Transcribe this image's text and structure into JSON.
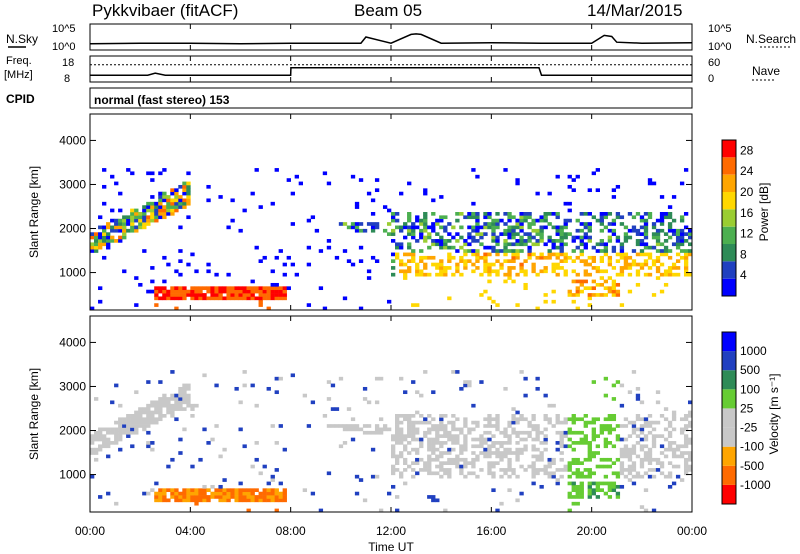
{
  "header": {
    "station": "Pykkvibaer (fitACF)",
    "beam": "Beam 05",
    "date": "14/Mar/2015"
  },
  "colors": {
    "power_scale": [
      "#0000ff",
      "#2040c0",
      "#2e8b57",
      "#4caf50",
      "#9acd32",
      "#ffd700",
      "#ffa500",
      "#ff6a00",
      "#ff0000"
    ],
    "velocity_scale": [
      "#ff0000",
      "#ff6a00",
      "#ffa500",
      "#c8c8c8",
      "#c8c8c8",
      "#66cc33",
      "#2e8b57",
      "#2040c0",
      "#0000ff"
    ],
    "gray_scatter": "#bebebe"
  },
  "chart_data": [
    {
      "type": "line",
      "panel": "nsky-nsearch",
      "left_label": "N.Sky",
      "right_label": "N.Search",
      "left_ticks": [
        "10^5",
        "10^0"
      ],
      "right_ticks": [
        "10^5",
        "10^0"
      ],
      "series": [
        {
          "x": [
            0,
            2,
            4,
            6,
            8,
            10,
            10.8,
            11,
            12,
            12.8,
            13,
            13.2,
            14,
            16,
            18,
            20,
            20.5,
            20.8,
            21,
            22,
            24
          ],
          "values": [
            1.2,
            1.3,
            1.3,
            1.2,
            1.3,
            1.3,
            1.3,
            2.5,
            1.3,
            3.0,
            3.1,
            3.0,
            1.3,
            1.4,
            1.3,
            1.3,
            2.8,
            2.6,
            1.5,
            1.3,
            1.4
          ]
        }
      ]
    },
    {
      "type": "line",
      "panel": "freq-nave",
      "left_label_top": "Freq.",
      "left_label_bottom": "[MHz]",
      "right_label": "Nave",
      "left_ticks": [
        "18",
        "8"
      ],
      "right_ticks": [
        "60",
        "0"
      ],
      "series": [
        {
          "x": [
            0,
            2.3,
            2.6,
            3.0,
            8.0,
            8.01,
            10,
            12,
            17.9,
            18.0,
            24
          ],
          "values": [
            10.6,
            10.6,
            11.4,
            10.6,
            10.6,
            13.5,
            13.5,
            13.5,
            13.5,
            10.6,
            10.6
          ]
        },
        {
          "x": [
            0,
            24
          ],
          "values": [
            14.6,
            14.6
          ]
        }
      ]
    },
    {
      "type": "heatmap",
      "panel": "cpid",
      "label": "CPID",
      "mode_text": "normal (fast stereo) 153"
    },
    {
      "type": "heatmap",
      "panel": "power",
      "ylabel": "Slant Range [km]",
      "yticks": [
        1000,
        2000,
        3000,
        4000
      ],
      "ylim": [
        150,
        4600
      ],
      "colorbar_label": "Power [dB]",
      "colorbar_ticks": [
        "4",
        "8",
        "12",
        "16",
        "20",
        "24",
        "28"
      ],
      "colorbar_range": [
        0,
        30
      ]
    },
    {
      "type": "heatmap",
      "panel": "velocity",
      "ylabel": "Slant Range [km]",
      "yticks": [
        1000,
        2000,
        3000,
        4000
      ],
      "ylim": [
        150,
        4600
      ],
      "colorbar_label": "Velocity [m s⁻¹]",
      "colorbar_ticks": [
        "-1000",
        "-500",
        "-100",
        "-25",
        "25",
        "100",
        "500",
        "1000"
      ],
      "xlabel": "Time UT",
      "xticks": [
        "00:00",
        "04:00",
        "08:00",
        "12:00",
        "16:00",
        "20:00",
        "00:00"
      ],
      "xlim": [
        0,
        24
      ]
    }
  ]
}
